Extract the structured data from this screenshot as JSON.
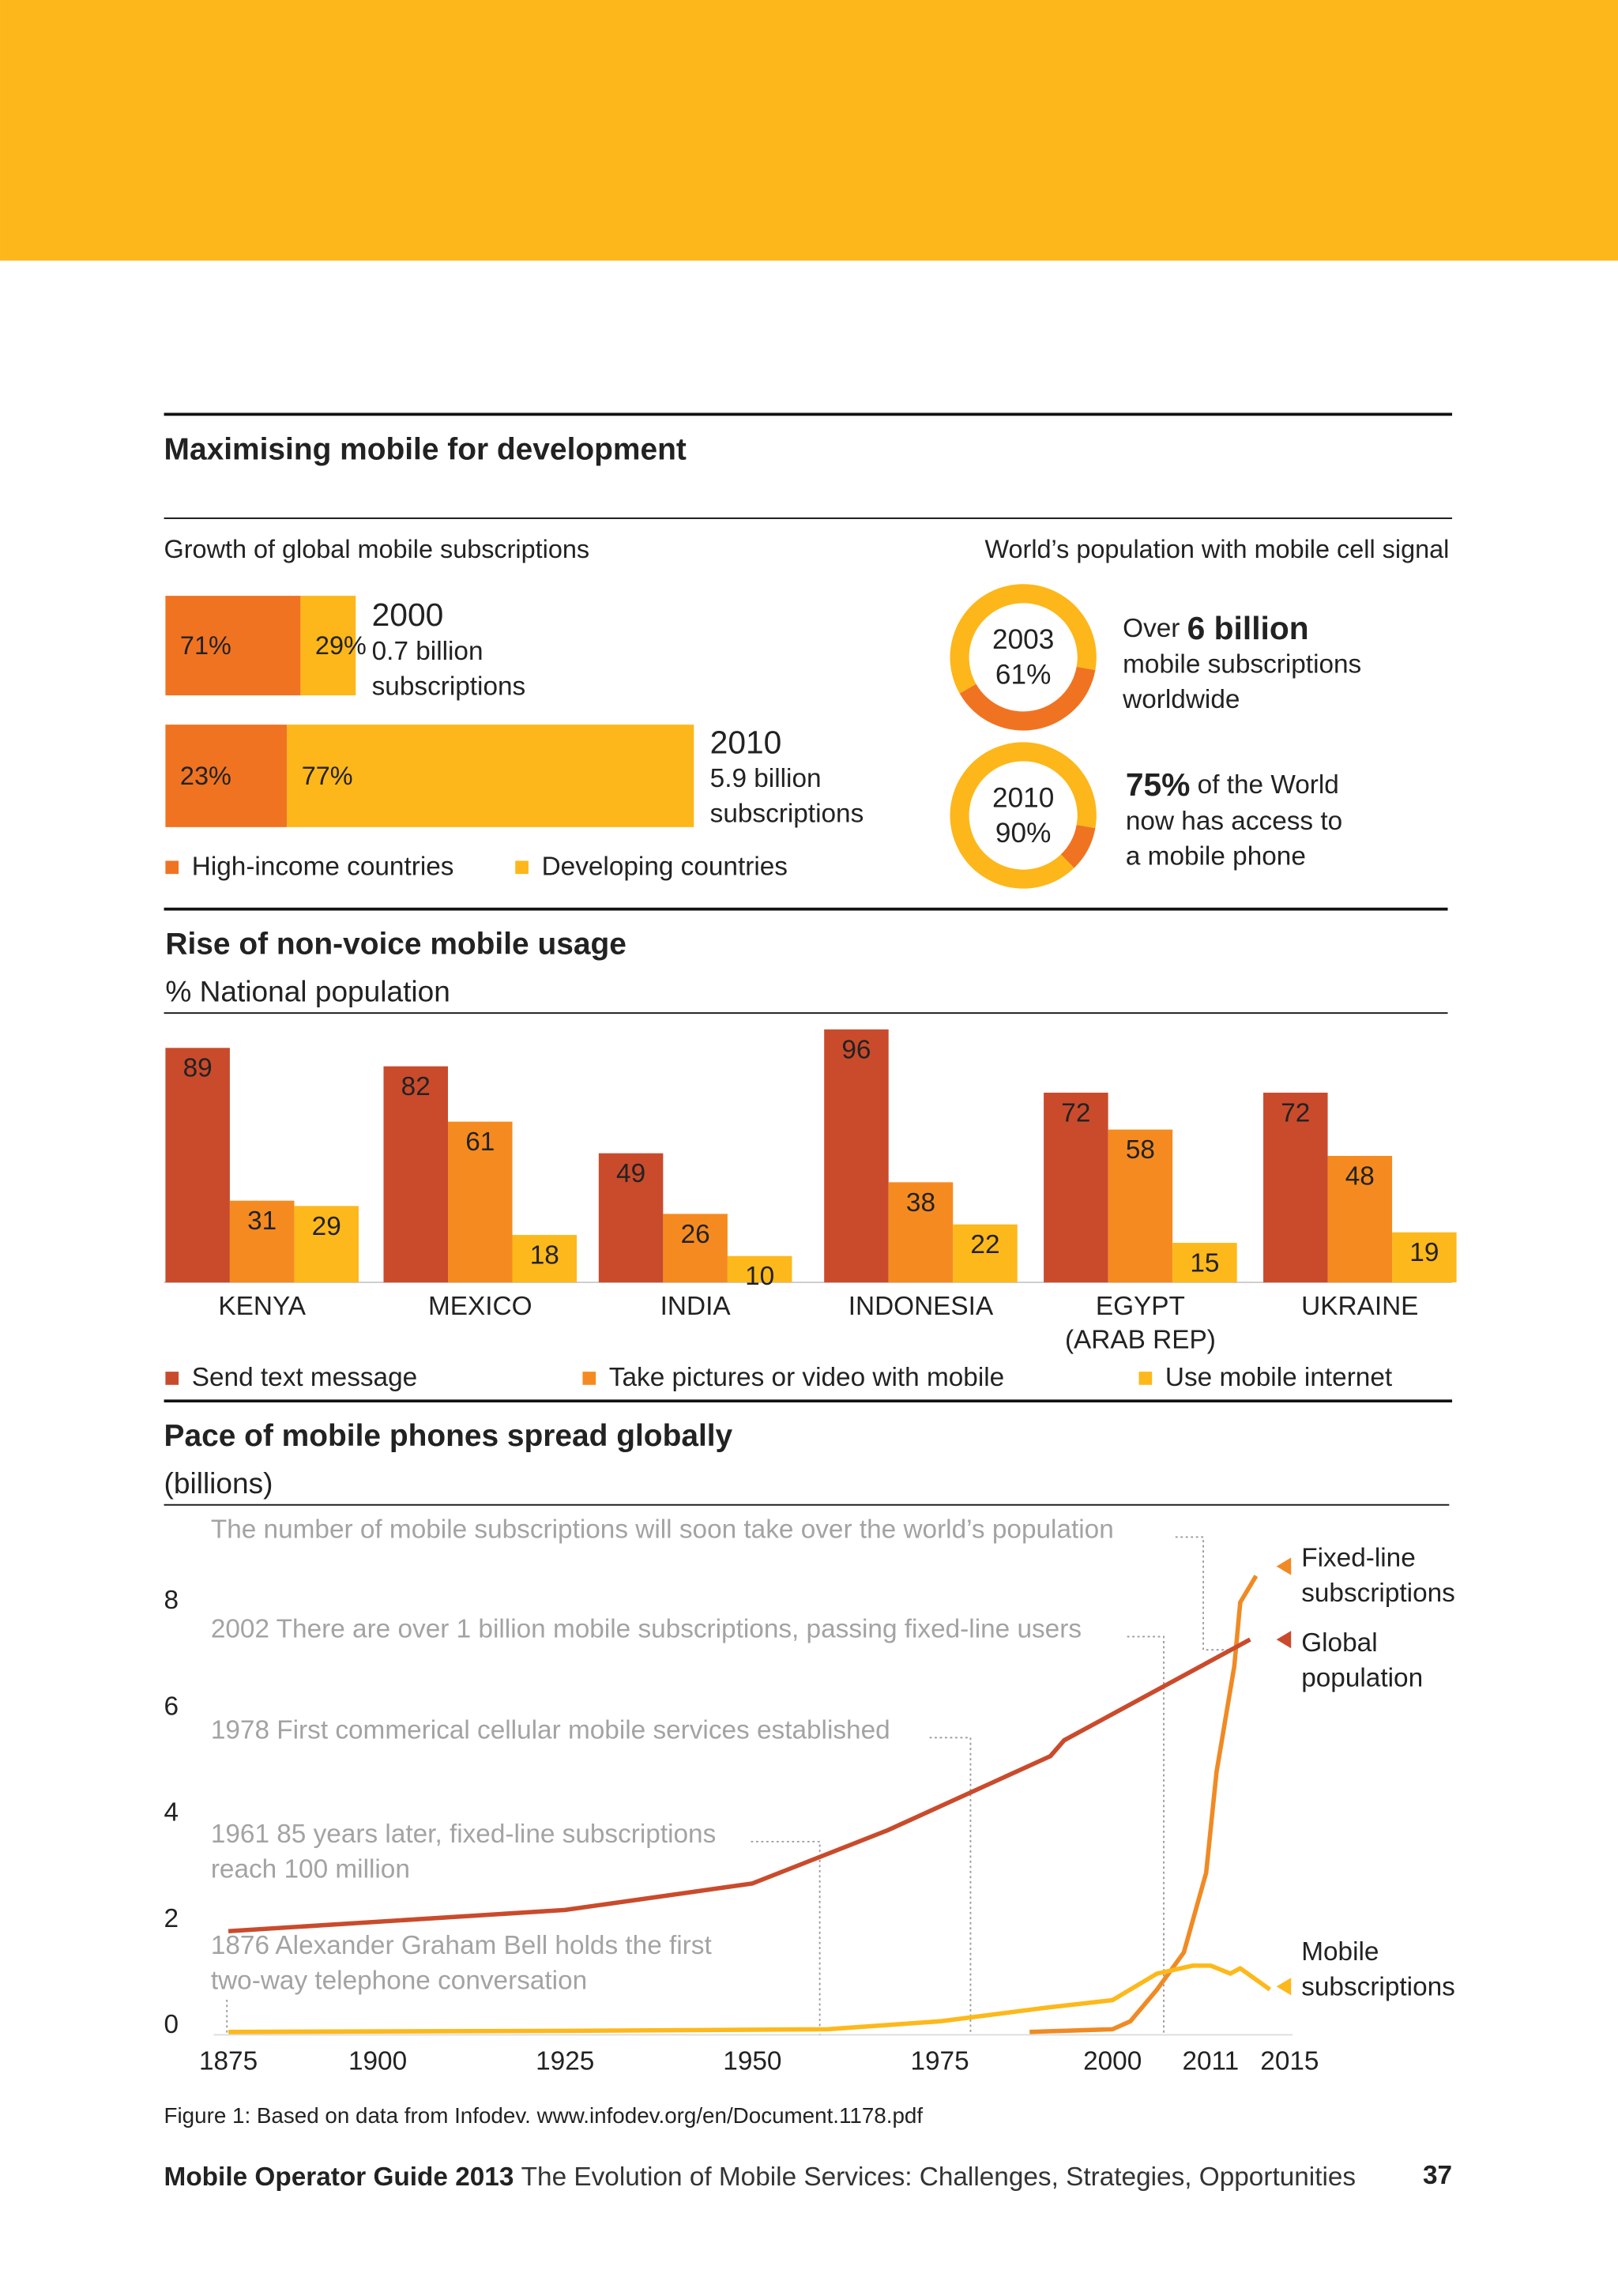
{
  "title": "Maximising mobile for development",
  "chart_data": [
    {
      "type": "bar",
      "orientation": "horizontal",
      "stacked": true,
      "title": "Growth of global mobile subscriptions",
      "categories": [
        "2000",
        "2010"
      ],
      "annotations": [
        [
          "0.7 billion",
          "subscriptions"
        ],
        [
          "5.9 billion",
          "subscriptions"
        ]
      ],
      "series": [
        {
          "name": "High-income countries",
          "color": "#f07322",
          "values": [
            71,
            23
          ],
          "value_labels": [
            "71%",
            "23%"
          ]
        },
        {
          "name": "Developing countries",
          "color": "#fdb71a",
          "values": [
            29,
            77
          ],
          "value_labels": [
            "29%",
            "77%"
          ]
        }
      ],
      "legend": "bottom"
    },
    {
      "type": "donut",
      "title": "World’s population with mobile cell signal",
      "categories": [
        "2003",
        "2010"
      ],
      "values": [
        61,
        90
      ],
      "value_labels": [
        "61%",
        "90%"
      ],
      "color": "#fdb71a",
      "rest_color": "#f07322",
      "annotations": [
        {
          "before": "Over",
          "bold": "6 billion",
          "lines": [
            "mobile subscriptions",
            "worldwide"
          ]
        },
        {
          "bold": "75%",
          "after": "of the World",
          "lines": [
            "now has access to",
            "a mobile phone"
          ]
        }
      ]
    },
    {
      "type": "bar",
      "title": "Rise of non-voice mobile usage",
      "subtitle": "% National population",
      "categories": [
        "KENYA",
        "MEXICO",
        "INDIA",
        "INDONESIA",
        "EGYPT (ARAB REP)",
        "UKRAINE"
      ],
      "series": [
        {
          "name": "Send text message",
          "color": "#c94b2c",
          "values": [
            89,
            82,
            49,
            96,
            72,
            72
          ]
        },
        {
          "name": "Take pictures or video with mobile",
          "color": "#f58b20",
          "values": [
            31,
            61,
            26,
            38,
            58,
            48
          ]
        },
        {
          "name": "Use mobile internet",
          "color": "#fdb81b",
          "values": [
            29,
            18,
            10,
            22,
            15,
            19
          ]
        }
      ],
      "legend": "bottom"
    },
    {
      "type": "line",
      "title": "Pace of mobile phones spread globally",
      "subtitle": "(billions)",
      "xlim": [
        1875,
        2015
      ],
      "xticks": [
        1875,
        1900,
        1925,
        1950,
        1975,
        2000,
        2011,
        2015
      ],
      "ylim": [
        0,
        9
      ],
      "yticks": [
        0,
        2,
        4,
        6,
        8
      ],
      "grid": false,
      "legend": "right",
      "series": [
        {
          "name": "Fixed-line subscriptions",
          "color": "#f08a24",
          "x": [
            1988,
            2000,
            2002,
            2005,
            2008,
            2010.5,
            2011.3,
            2012.2,
            2012.5,
            2013.3
          ],
          "values": [
            0,
            0.05,
            0.2,
            0.8,
            1.5,
            3.0,
            4.9,
            6.9,
            8.1,
            8.6
          ]
        },
        {
          "name": "Global population",
          "color": "#c94b2c",
          "x": [
            1875,
            1925,
            1950,
            1968,
            1991,
            1993,
            2013
          ],
          "values": [
            1.9,
            2.3,
            2.8,
            3.8,
            5.2,
            5.5,
            7.4
          ]
        },
        {
          "name": "Mobile subscriptions",
          "color": "#fdb81b",
          "x": [
            1875,
            1925,
            1960,
            1975,
            1990,
            2000,
            2005,
            2009,
            2011,
            2012,
            2012.5,
            2014
          ],
          "values": [
            0,
            0.02,
            0.05,
            0.2,
            0.45,
            0.6,
            1.1,
            1.25,
            1.25,
            1.1,
            1.2,
            0.8
          ]
        }
      ],
      "annotations": [
        [
          "The number of mobile subscriptions will soon take over the world’s population"
        ],
        [
          "2002 There are over 1 billion mobile subscriptions, passing fixed-line users"
        ],
        [
          "1978 First commerical cellular mobile services established"
        ],
        [
          "1961  85 years later, fixed-line subscriptions",
          "reach 100 million"
        ],
        [
          "1876  Alexander Graham Bell holds the first",
          "two-way telephone conversation"
        ]
      ],
      "caption": "Figure 1: Based on data from Infodev. www.infodev.org/en/Document.1178.pdf"
    }
  ],
  "footer": {
    "title": "Mobile Operator Guide 2013",
    "subtitle": "The Evolution of Mobile Services: Challenges, Strategies, Opportunities",
    "page": "37"
  }
}
